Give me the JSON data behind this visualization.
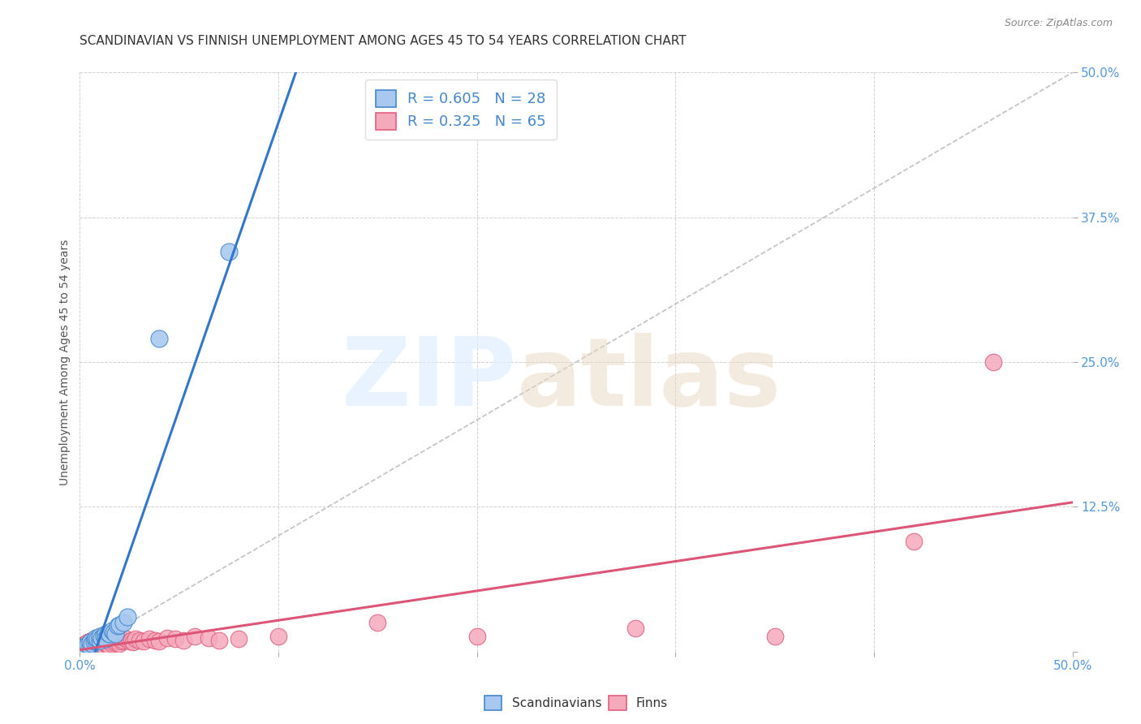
{
  "title": "SCANDINAVIAN VS FINNISH UNEMPLOYMENT AMONG AGES 45 TO 54 YEARS CORRELATION CHART",
  "source": "Source: ZipAtlas.com",
  "ylabel": "Unemployment Among Ages 45 to 54 years",
  "xlim": [
    0.0,
    0.5
  ],
  "ylim": [
    0.0,
    0.5
  ],
  "xticks": [
    0.0,
    0.1,
    0.2,
    0.3,
    0.4,
    0.5
  ],
  "yticks": [
    0.0,
    0.125,
    0.25,
    0.375,
    0.5
  ],
  "xticklabels": [
    "0.0%",
    "",
    "",
    "",
    "",
    "50.0%"
  ],
  "yticklabels": [
    "",
    "12.5%",
    "25.0%",
    "37.5%",
    "50.0%"
  ],
  "scand_R": 0.605,
  "scand_N": 28,
  "scand_color": "#a8c8f0",
  "scand_edge": "#4488cc",
  "scand_line": "#3377cc",
  "finn_R": 0.325,
  "finn_N": 65,
  "finn_color": "#f5aabb",
  "finn_edge": "#e06080",
  "finn_line": "#dd5577",
  "scand_x": [
    0.001,
    0.002,
    0.003,
    0.004,
    0.005,
    0.005,
    0.006,
    0.007,
    0.008,
    0.008,
    0.009,
    0.01,
    0.01,
    0.011,
    0.012,
    0.013,
    0.013,
    0.014,
    0.015,
    0.016,
    0.017,
    0.018,
    0.019,
    0.02,
    0.022,
    0.024,
    0.04,
    0.075
  ],
  "scand_y": [
    0.003,
    0.004,
    0.003,
    0.006,
    0.005,
    0.008,
    0.007,
    0.009,
    0.01,
    0.012,
    0.011,
    0.01,
    0.013,
    0.012,
    0.014,
    0.015,
    0.011,
    0.016,
    0.015,
    0.018,
    0.017,
    0.015,
    0.022,
    0.023,
    0.025,
    0.03,
    0.27,
    0.345
  ],
  "finn_x": [
    0.001,
    0.001,
    0.002,
    0.002,
    0.003,
    0.003,
    0.004,
    0.004,
    0.005,
    0.005,
    0.005,
    0.006,
    0.006,
    0.006,
    0.007,
    0.007,
    0.008,
    0.008,
    0.009,
    0.009,
    0.01,
    0.01,
    0.01,
    0.011,
    0.012,
    0.012,
    0.013,
    0.013,
    0.014,
    0.014,
    0.015,
    0.015,
    0.016,
    0.016,
    0.017,
    0.018,
    0.019,
    0.02,
    0.02,
    0.021,
    0.022,
    0.023,
    0.025,
    0.026,
    0.027,
    0.028,
    0.03,
    0.032,
    0.035,
    0.038,
    0.04,
    0.044,
    0.048,
    0.052,
    0.058,
    0.065,
    0.07,
    0.08,
    0.1,
    0.15,
    0.2,
    0.28,
    0.35,
    0.42,
    0.46
  ],
  "finn_y": [
    0.003,
    0.005,
    0.002,
    0.006,
    0.003,
    0.007,
    0.004,
    0.008,
    0.002,
    0.005,
    0.009,
    0.003,
    0.006,
    0.01,
    0.004,
    0.008,
    0.003,
    0.007,
    0.005,
    0.009,
    0.004,
    0.007,
    0.011,
    0.006,
    0.005,
    0.009,
    0.007,
    0.012,
    0.006,
    0.01,
    0.005,
    0.009,
    0.007,
    0.011,
    0.008,
    0.009,
    0.01,
    0.007,
    0.012,
    0.009,
    0.01,
    0.011,
    0.009,
    0.01,
    0.008,
    0.011,
    0.01,
    0.009,
    0.011,
    0.01,
    0.009,
    0.012,
    0.011,
    0.01,
    0.013,
    0.012,
    0.01,
    0.011,
    0.013,
    0.025,
    0.013,
    0.02,
    0.013,
    0.095,
    0.25
  ],
  "bg_color": "#ffffff",
  "grid_color": "#cccccc",
  "title_fontsize": 11,
  "label_fontsize": 10,
  "tick_fontsize": 11,
  "legend_fontsize": 13,
  "source_fontsize": 9
}
